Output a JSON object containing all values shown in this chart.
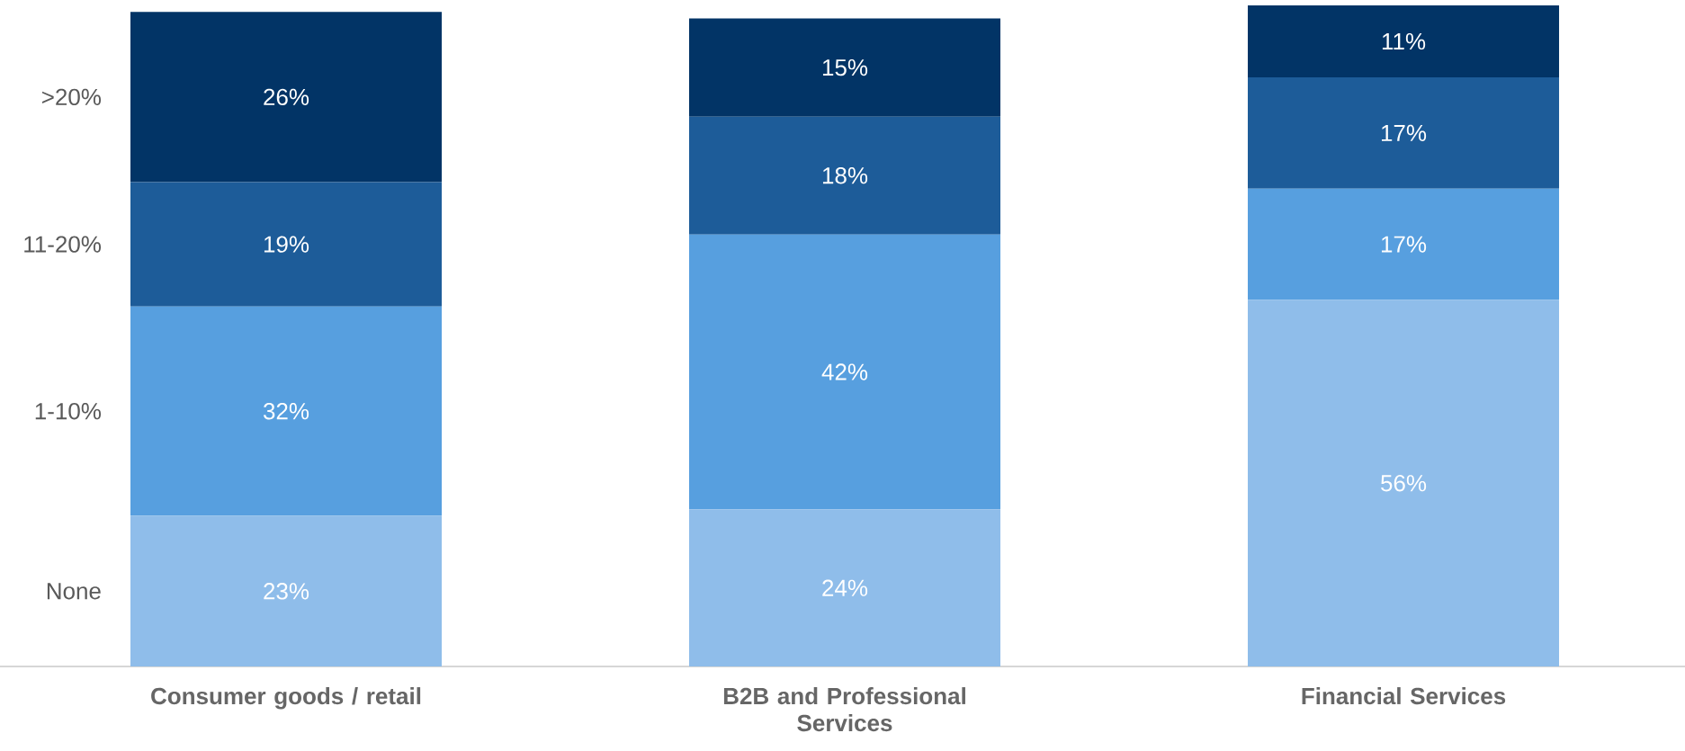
{
  "chart_data": {
    "type": "bar",
    "stacked": true,
    "categories": [
      "Consumer goods / retail",
      "B2B and Professional Services",
      "Financial Services"
    ],
    "series": [
      {
        "name": "None",
        "color": "#8fbdea",
        "values": [
          23,
          24,
          56
        ],
        "value_labels": [
          "23%",
          "24%",
          "56%"
        ]
      },
      {
        "name": "1-10%",
        "color": "#579fdf",
        "values": [
          32,
          42,
          17
        ],
        "value_labels": [
          "32%",
          "42%",
          "17%"
        ]
      },
      {
        "name": "11-20%",
        "color": "#1d5c99",
        "values": [
          19,
          18,
          17
        ],
        "value_labels": [
          "19%",
          "18%",
          "17%"
        ]
      },
      {
        "name": ">20%",
        "color": "#023466",
        "values": [
          26,
          15,
          11
        ],
        "value_labels": [
          "26%",
          "15%",
          "11%"
        ]
      }
    ]
  }
}
